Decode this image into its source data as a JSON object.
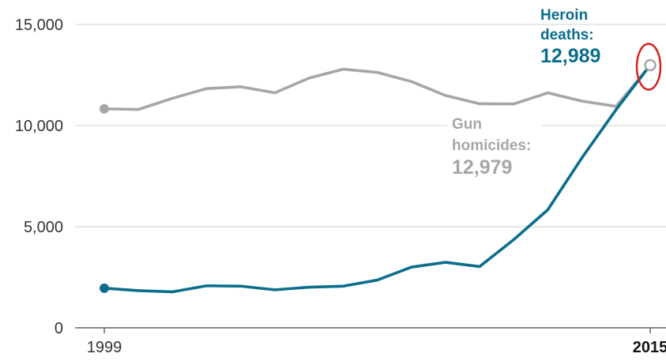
{
  "chart_data": {
    "type": "line",
    "x": [
      1999,
      2000,
      2001,
      2002,
      2003,
      2004,
      2005,
      2006,
      2007,
      2008,
      2009,
      2010,
      2011,
      2012,
      2013,
      2014,
      2015
    ],
    "ylim": [
      0,
      15000
    ],
    "yticks": [
      {
        "value": 0,
        "label": "0"
      },
      {
        "value": 5000,
        "label": "5,000"
      },
      {
        "value": 10000,
        "label": "10,000"
      },
      {
        "value": 15000,
        "label": "15,000"
      }
    ],
    "xticks": [
      {
        "value": 1999,
        "label": "1999"
      },
      {
        "value": 2015,
        "label": "2015"
      }
    ],
    "grid": true,
    "series": [
      {
        "name": "Gun homicides",
        "color": "#a6a6a6",
        "values": [
          10830,
          10800,
          11350,
          11830,
          11920,
          11620,
          12350,
          12790,
          12630,
          12180,
          11490,
          11080,
          11070,
          11620,
          11210,
          10950,
          12979
        ]
      },
      {
        "name": "Heroin deaths",
        "color": "#0b6e8c",
        "values": [
          1960,
          1840,
          1780,
          2080,
          2060,
          1880,
          2010,
          2060,
          2360,
          3000,
          3240,
          3030,
          4360,
          5840,
          8410,
          10790,
          12989
        ]
      }
    ],
    "annotations": {
      "heroin": {
        "label_line1": "Heroin",
        "label_line2": "deaths:",
        "value": "12,989",
        "color": "#0b6e8c"
      },
      "gun": {
        "label_line1": "Gun",
        "label_line2": "homicides:",
        "value": "12,979",
        "color": "#a6a6a6"
      },
      "highlight_color": "#d62020"
    }
  }
}
